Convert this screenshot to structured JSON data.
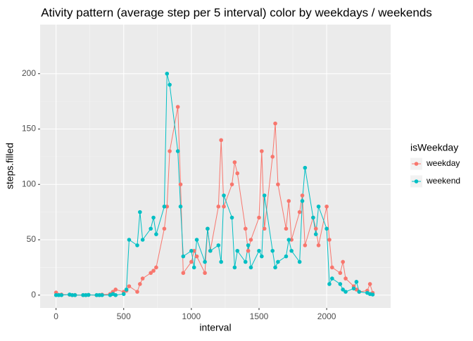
{
  "chart_data": {
    "type": "line",
    "title": "Ativity pattern (average step per 5 interval) color by weekdays / weekends",
    "x_label": "interval",
    "y_label": "steps.filled",
    "legend_title": "isWeekday",
    "legend_position": "right",
    "x": [
      0,
      20,
      40,
      100,
      120,
      140,
      200,
      220,
      240,
      300,
      320,
      340,
      400,
      420,
      440,
      500,
      520,
      540,
      600,
      620,
      640,
      700,
      720,
      740,
      800,
      820,
      840,
      900,
      920,
      940,
      1000,
      1020,
      1040,
      1100,
      1120,
      1140,
      1200,
      1220,
      1240,
      1300,
      1320,
      1340,
      1400,
      1420,
      1440,
      1500,
      1520,
      1540,
      1600,
      1620,
      1640,
      1700,
      1720,
      1740,
      1800,
      1820,
      1840,
      1900,
      1920,
      1940,
      2000,
      2020,
      2040,
      2100,
      2120,
      2140,
      2200,
      2220,
      2240,
      2300,
      2320,
      2340
    ],
    "series": [
      {
        "name": "weekday",
        "color": "#F8766D",
        "values": [
          2.3,
          0.2,
          0.5,
          0.4,
          0,
          0.1,
          0,
          0,
          0.2,
          0,
          0,
          0.4,
          1,
          3,
          5,
          3,
          4,
          8,
          3,
          10,
          15,
          20,
          22,
          25,
          60,
          80,
          130,
          170,
          100,
          20,
          30,
          40,
          35,
          20,
          60,
          40,
          80,
          140,
          80,
          100,
          120,
          110,
          60,
          40,
          50,
          70,
          130,
          60,
          125,
          155,
          100,
          60,
          85,
          50,
          75,
          90,
          45,
          70,
          60,
          45,
          80,
          50,
          25,
          20,
          30,
          15,
          8,
          5,
          3,
          4,
          10,
          2
        ]
      },
      {
        "name": "weekend",
        "color": "#00BFC4",
        "values": [
          0,
          0,
          0,
          0.5,
          0,
          0,
          0,
          0,
          0.2,
          0,
          0,
          0,
          0,
          1,
          0,
          1,
          5,
          50,
          45,
          75,
          50,
          60,
          70,
          55,
          80,
          200,
          190,
          130,
          80,
          35,
          40,
          25,
          50,
          30,
          60,
          40,
          45,
          30,
          90,
          70,
          25,
          40,
          30,
          45,
          25,
          40,
          35,
          90,
          40,
          25,
          30,
          35,
          50,
          40,
          30,
          85,
          115,
          70,
          55,
          80,
          60,
          10,
          15,
          10,
          5,
          3,
          6,
          12,
          3,
          2,
          1,
          0.5
        ]
      }
    ],
    "xlim": [
      -117.75,
      2472.75
    ],
    "ylim": [
      -11.6,
      244.3
    ],
    "xticks": [
      0,
      500,
      1000,
      1500,
      2000
    ],
    "yticks": [
      0,
      50,
      100,
      150,
      200
    ],
    "grid": true,
    "minor_grid": true
  }
}
